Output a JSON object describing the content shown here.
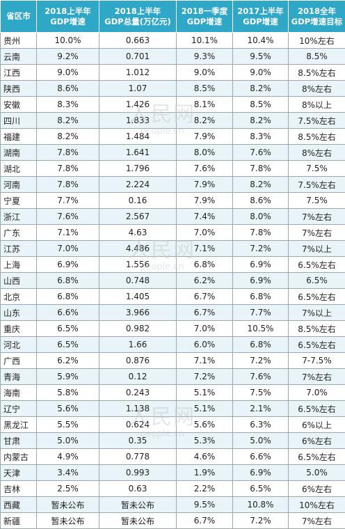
{
  "headers": [
    "省区市",
    "2018上半年\nGDP增速",
    "2018上半年\nGDP总量(万亿元)",
    "2018一季度\nGDP增速",
    "2017上半年\nGDP增速",
    "2018全年\nGDP增速目标"
  ],
  "rows": [
    [
      "贵州",
      "10.0%",
      "0.663",
      "10.1%",
      "10.4%",
      "10%左右"
    ],
    [
      "云南",
      "9.2%",
      "0.701",
      "9.3%",
      "9.5%",
      "8.5%"
    ],
    [
      "江西",
      "9.0%",
      "1.012",
      "9.0%",
      "9.0%",
      "8.5%左右"
    ],
    [
      "陕西",
      "8.6%",
      "1.07",
      "8.5%",
      "8.2%",
      "8%左右"
    ],
    [
      "安徽",
      "8.3%",
      "1.426",
      "8.1%",
      "8.5%",
      "8%以上"
    ],
    [
      "四川",
      "8.2%",
      "1.833",
      "8.2%",
      "8.2%",
      "7.5%左右"
    ],
    [
      "福建",
      "8.2%",
      "1.484",
      "7.9%",
      "8.3%",
      "8.5%左右"
    ],
    [
      "湖南",
      "7.8%",
      "1.641",
      "8.0%",
      "7.6%",
      "8%左右"
    ],
    [
      "湖北",
      "7.8%",
      "1.796",
      "7.6%",
      "7.8%",
      "7.5%"
    ],
    [
      "河南",
      "7.8%",
      "2.224",
      "7.9%",
      "8.2%",
      "7.5%左右"
    ],
    [
      "宁夏",
      "7.7%",
      "0.16",
      "7.9%",
      "8.6%",
      "7.5%"
    ],
    [
      "浙江",
      "7.6%",
      "2.567",
      "7.4%",
      "8.0%",
      "7%左右"
    ],
    [
      "广东",
      "7.1%",
      "4.63",
      "7.0%",
      "7.8%",
      "7%左右"
    ],
    [
      "江苏",
      "7.0%",
      "4.486",
      "7.1%",
      "7.2%",
      "7%以上"
    ],
    [
      "上海",
      "6.9%",
      "1.556",
      "6.8%",
      "6.9%",
      "6.5%左右"
    ],
    [
      "山西",
      "6.8%",
      "0.748",
      "6.2%",
      "6.9%",
      "6.5%"
    ],
    [
      "北京",
      "6.8%",
      "1.405",
      "6.7%",
      "6.8%",
      "6.5%左右"
    ],
    [
      "山东",
      "6.6%",
      "3.966",
      "6.7%",
      "7.7%",
      "7%以上"
    ],
    [
      "重庆",
      "6.5%",
      "0.982",
      "7.0%",
      "10.5%",
      "8.5%左右"
    ],
    [
      "河北",
      "6.5%",
      "1.66",
      "6.0%",
      "6.8%",
      "6.5%左右"
    ],
    [
      "广西",
      "6.2%",
      "0.876",
      "7.1%",
      "7.2%",
      "7-7.5%"
    ],
    [
      "青海",
      "5.9%",
      "0.12",
      "7.2%",
      "7.6%",
      "7%左右"
    ],
    [
      "海南",
      "5.8%",
      "0.243",
      "5.1%",
      "7.5%",
      "7.0%"
    ],
    [
      "辽宁",
      "5.6%",
      "1.138",
      "5.1%",
      "2.1%",
      "6.5%左右"
    ],
    [
      "黑龙江",
      "5.5%",
      "0.624",
      "5.6%",
      "6.3%",
      "6%以上"
    ],
    [
      "甘肃",
      "5.0%",
      "0.35",
      "5.3%",
      "5.0%",
      "6%左右"
    ],
    [
      "内蒙古",
      "4.9%",
      "0.778",
      "4.6%",
      "6.6%",
      "6.5%左右"
    ],
    [
      "天津",
      "3.4%",
      "0.993",
      "1.9%",
      "6.9%",
      "5.0%"
    ],
    [
      "吉林",
      "2.5%",
      "0.63",
      "2.2%",
      "6.5%",
      "6%左右"
    ],
    [
      "西藏",
      "暂未公布",
      "暂未公布",
      "9.5%",
      "10.8%",
      "10%左右"
    ],
    [
      "新疆",
      "暂未公布",
      "暂未公布",
      "6.7%",
      "7.2%",
      "7%左右"
    ]
  ],
  "watermark": {
    "cn": "人民网",
    "en": "people.cn"
  },
  "colors": {
    "header_bg": "#2fa7c6",
    "stripe": "#e9f4f8",
    "grid": "#9aa7ad"
  }
}
